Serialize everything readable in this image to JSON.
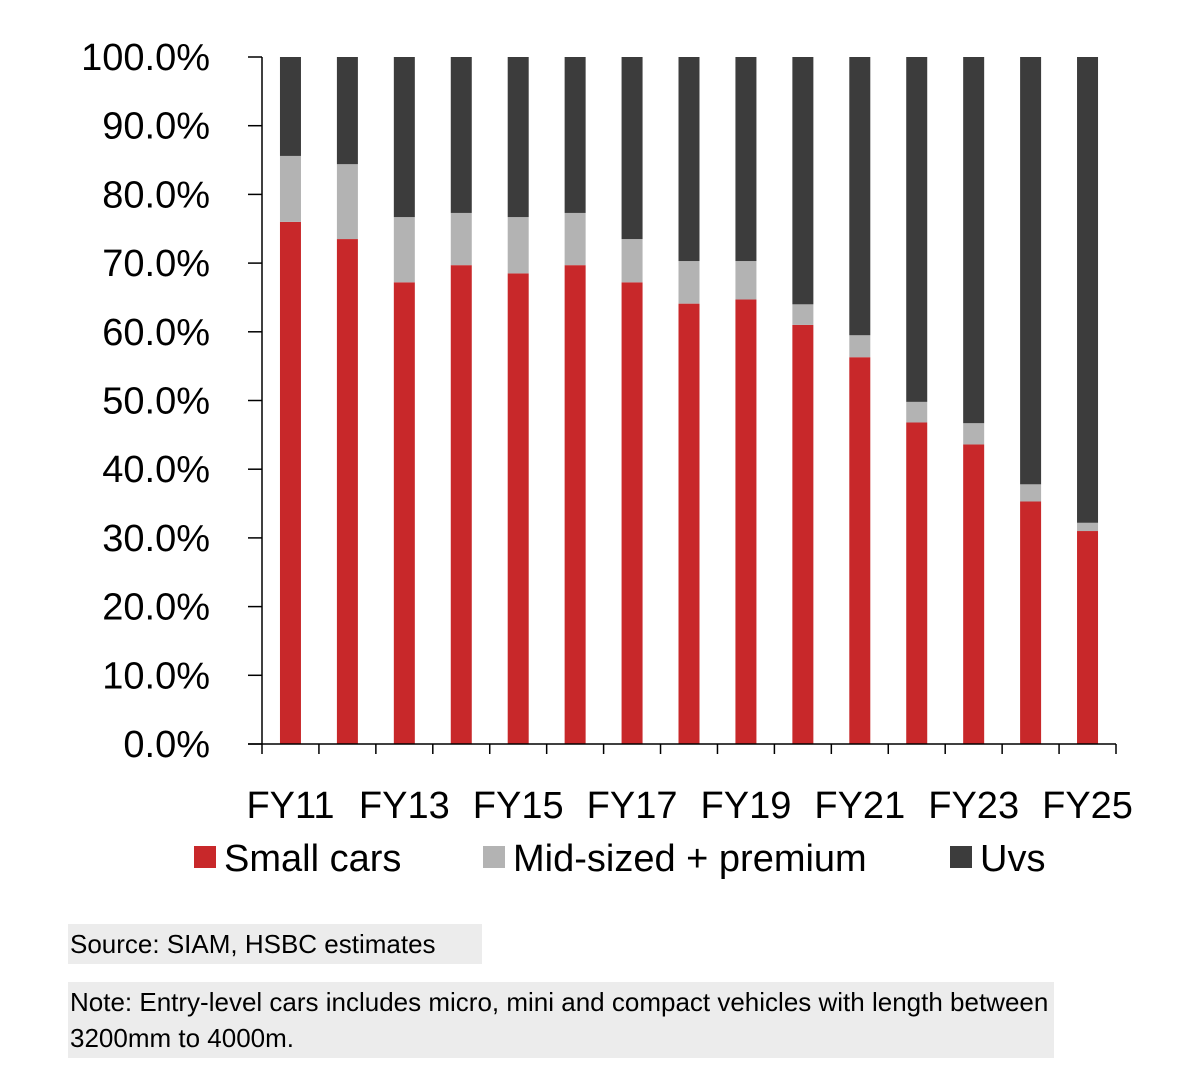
{
  "chart_data": {
    "type": "bar",
    "stacked": true,
    "categories": [
      "FY11",
      "FY12",
      "FY13",
      "FY14",
      "FY15",
      "FY16",
      "FY17",
      "FY18",
      "FY19",
      "FY20",
      "FY21",
      "FY22",
      "FY23",
      "FY24",
      "FY25"
    ],
    "x_tick_labels": [
      "FY11",
      "FY13",
      "FY15",
      "FY17",
      "FY19",
      "FY21",
      "FY23",
      "FY25"
    ],
    "y_tick_labels": [
      "0.0%",
      "10.0%",
      "20.0%",
      "30.0%",
      "40.0%",
      "50.0%",
      "60.0%",
      "70.0%",
      "80.0%",
      "90.0%",
      "100.0%"
    ],
    "ylim": [
      0,
      100
    ],
    "grid": false,
    "legend_position": "bottom",
    "series": [
      {
        "name": "Small cars",
        "color": "#c8282a",
        "values": [
          76.0,
          73.5,
          67.2,
          69.7,
          68.5,
          69.7,
          67.2,
          64.1,
          64.7,
          61.0,
          56.3,
          46.8,
          43.6,
          35.3,
          31.0
        ]
      },
      {
        "name": "Mid-sized + premium",
        "color": "#b3b3b3",
        "values": [
          9.6,
          10.9,
          9.5,
          7.6,
          8.2,
          7.6,
          6.3,
          6.2,
          5.6,
          3.0,
          3.2,
          3.0,
          3.1,
          2.5,
          1.2
        ]
      },
      {
        "name": "Uvs",
        "color": "#3c3c3c",
        "values": [
          14.4,
          15.6,
          23.3,
          22.7,
          23.3,
          22.7,
          26.5,
          29.7,
          29.7,
          36.0,
          40.5,
          50.2,
          53.3,
          62.2,
          67.8
        ]
      }
    ]
  },
  "footer": {
    "source": "Source: SIAM, HSBC estimates",
    "note": "Note: Entry-level cars includes micro, mini and compact vehicles with length between 3200mm to 4000m."
  }
}
